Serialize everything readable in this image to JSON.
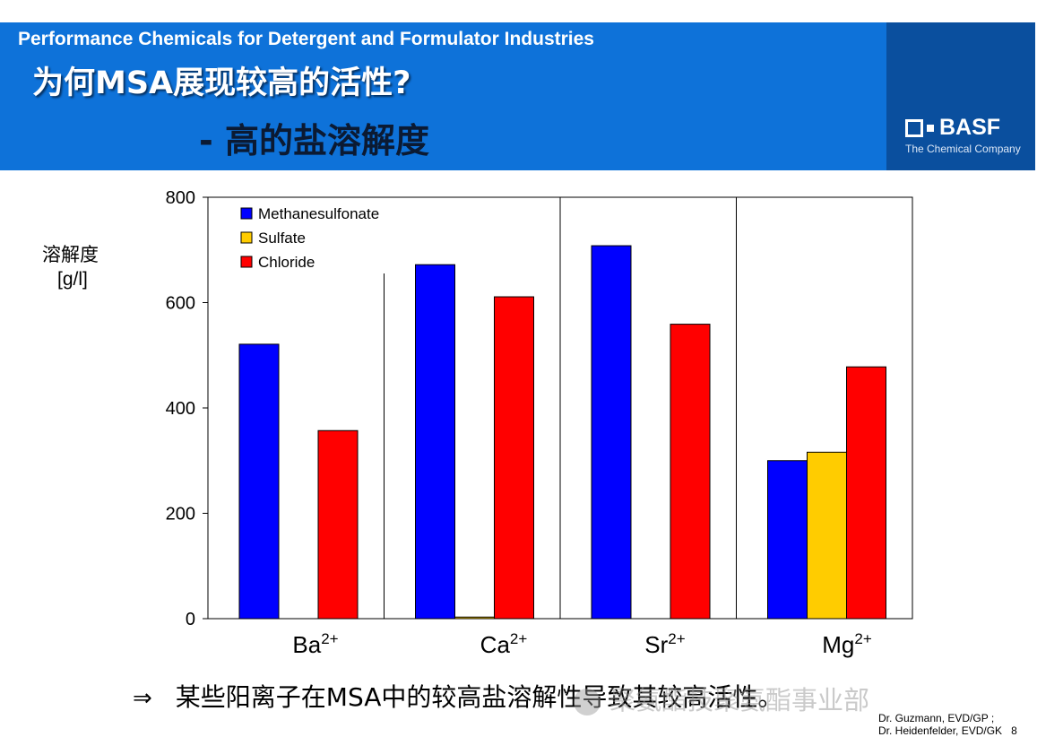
{
  "header": {
    "subtitle": "Performance Chemicals for Detergent and Formulator Industries",
    "title": "为何MSA展现较高的活性?",
    "title_sub": "-  高的盐溶解度",
    "logo_text": "BASF",
    "logo_tagline": "The Chemical Company"
  },
  "colors": {
    "header_blue": "#0e72d9",
    "header_dark": "#0a4f9e",
    "methanesulfonate": "#0000ff",
    "sulfate": "#ffcc00",
    "chloride": "#ff0000"
  },
  "chart_data": {
    "type": "bar",
    "ylabel_line1": "溶解度",
    "ylabel_line2": "[g/l]",
    "ylim": [
      0,
      800
    ],
    "yticks": [
      0,
      200,
      400,
      600,
      800
    ],
    "categories": [
      "Ba",
      "Ca",
      "Sr",
      "Mg"
    ],
    "category_superscript": "2+",
    "legend_position": "top-left",
    "series": [
      {
        "name": "Methanesulfonate",
        "color": "#0000ff",
        "values": [
          521,
          672,
          708,
          300
        ]
      },
      {
        "name": "Sulfate",
        "color": "#ffcc00",
        "values": [
          0,
          3,
          0,
          316
        ]
      },
      {
        "name": "Chloride",
        "color": "#ff0000",
        "values": [
          357,
          611,
          559,
          478
        ]
      }
    ]
  },
  "conclusion": {
    "arrow": "⇒",
    "text": "某些阳离子在MSA中的较高盐溶解性导致其较高活性。"
  },
  "watermark": "聚氨酯技聚氨酯事业部",
  "footer": {
    "line1": "Dr. Guzmann, EVD/GP ;",
    "line2": "Dr. Heidenfelder, EVD/GK",
    "page": "8"
  }
}
